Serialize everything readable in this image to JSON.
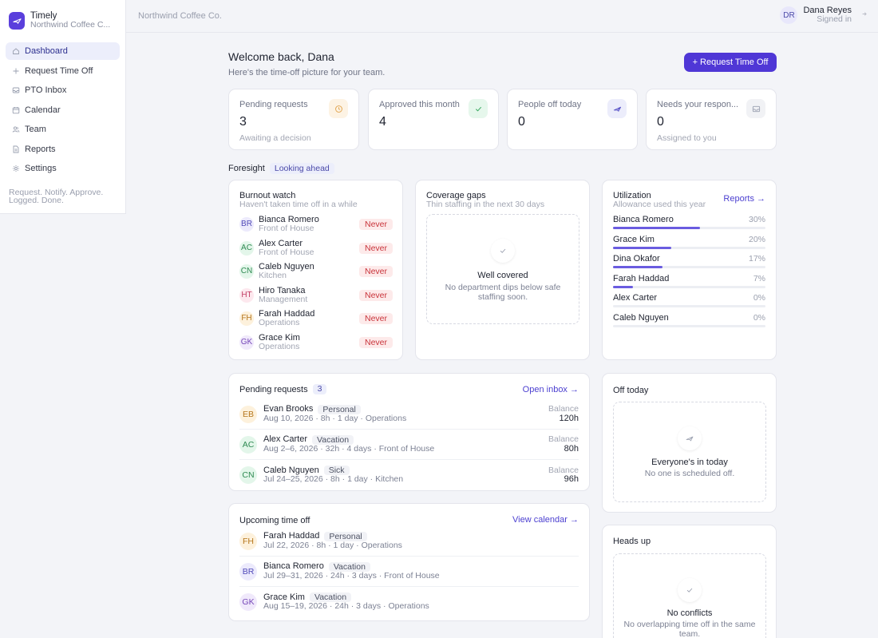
{
  "brand": {
    "name": "Timely",
    "subtitle": "Northwind Coffee C..."
  },
  "nav": [
    {
      "label": "Dashboard",
      "icon": "home-icon",
      "active": true
    },
    {
      "label": "Request Time Off",
      "icon": "plus-icon"
    },
    {
      "label": "PTO Inbox",
      "icon": "inbox-icon"
    },
    {
      "label": "Calendar",
      "icon": "calendar-icon"
    },
    {
      "label": "Team",
      "icon": "team-icon"
    },
    {
      "label": "Reports",
      "icon": "report-icon"
    },
    {
      "label": "Settings",
      "icon": "settings-icon"
    }
  ],
  "tagline": "Request. Notify. Approve. Logged. Done.",
  "topbar": {
    "company": "Northwind Coffee Co.",
    "user_initials": "DR",
    "user_name": "Dana Reyes",
    "user_status": "Signed in"
  },
  "welcome": {
    "title": "Welcome back, Dana",
    "subtitle": "Here's the time-off picture for your team.",
    "button": "+ Request Time Off"
  },
  "stats": [
    {
      "label": "Pending requests",
      "value": "3",
      "sub": "Awaiting a decision",
      "icon": "clock-icon",
      "icon_bg": "#fdf3e4",
      "icon_color": "#e0a24a"
    },
    {
      "label": "Approved this month",
      "value": "4",
      "sub": "",
      "icon": "check-icon",
      "icon_bg": "#e6f7ec",
      "icon_color": "#3aa860"
    },
    {
      "label": "People off today",
      "value": "0",
      "sub": "",
      "icon": "plane-icon",
      "icon_bg": "#ecedfb",
      "icon_color": "#5b56c8"
    },
    {
      "label": "Needs your respon...",
      "value": "0",
      "sub": "Assigned to you",
      "icon": "inbox-icon",
      "icon_bg": "#f1f2f5",
      "icon_color": "#9aa0b0"
    }
  ],
  "foresight": {
    "title": "Foresight",
    "badge": "Looking ahead"
  },
  "burnout": {
    "title": "Burnout watch",
    "subtitle": "Haven't taken time off in a while",
    "people": [
      {
        "initials": "BR",
        "name": "Bianca Romero",
        "dept": "Front of House",
        "status": "Never",
        "bg": "#eceafc",
        "fg": "#5049b8"
      },
      {
        "initials": "AC",
        "name": "Alex Carter",
        "dept": "Front of House",
        "status": "Never",
        "bg": "#e3f6ea",
        "fg": "#2f8a52"
      },
      {
        "initials": "CN",
        "name": "Caleb Nguyen",
        "dept": "Kitchen",
        "status": "Never",
        "bg": "#e3f6ea",
        "fg": "#2f8a52"
      },
      {
        "initials": "HT",
        "name": "Hiro Tanaka",
        "dept": "Management",
        "status": "Never",
        "bg": "#fde8ee",
        "fg": "#c23d64"
      },
      {
        "initials": "FH",
        "name": "Farah Haddad",
        "dept": "Operations",
        "status": "Never",
        "bg": "#fdf1dc",
        "fg": "#b5761c"
      },
      {
        "initials": "GK",
        "name": "Grace Kim",
        "dept": "Operations",
        "status": "Never",
        "bg": "#f0e9fb",
        "fg": "#7647b8"
      }
    ]
  },
  "coverage": {
    "title": "Coverage gaps",
    "subtitle": "Thin staffing in the next 30 days",
    "empty_title": "Well covered",
    "empty_text": "No department dips below safe staffing soon."
  },
  "utilization": {
    "title": "Utilization",
    "subtitle": "Allowance used this year",
    "link": "Reports →",
    "rows": [
      {
        "name": "Bianca Romero",
        "pct_label": "30%",
        "pct": 30
      },
      {
        "name": "Grace Kim",
        "pct_label": "20%",
        "pct": 20
      },
      {
        "name": "Dina Okafor",
        "pct_label": "17%",
        "pct": 17
      },
      {
        "name": "Farah Haddad",
        "pct_label": "7%",
        "pct": 7
      },
      {
        "name": "Alex Carter",
        "pct_label": "0%",
        "pct": 0
      },
      {
        "name": "Caleb Nguyen",
        "pct_label": "0%",
        "pct": 0
      }
    ]
  },
  "pending": {
    "title": "Pending requests",
    "count": "3",
    "link": "Open inbox →",
    "balance_label": "Balance",
    "rows": [
      {
        "initials": "EB",
        "name": "Evan Brooks",
        "type": "Personal",
        "meta": "Aug 10, 2026 · 8h · 1 day · Operations",
        "balance": "120h",
        "bg": "#fdf1dc",
        "fg": "#b5761c"
      },
      {
        "initials": "AC",
        "name": "Alex Carter",
        "type": "Vacation",
        "meta": "Aug 2–6, 2026 · 32h · 4 days · Front of House",
        "balance": "80h",
        "bg": "#e3f6ea",
        "fg": "#2f8a52"
      },
      {
        "initials": "CN",
        "name": "Caleb Nguyen",
        "type": "Sick",
        "meta": "Jul 24–25, 2026 · 8h · 1 day · Kitchen",
        "balance": "96h",
        "bg": "#e3f6ea",
        "fg": "#2f8a52"
      }
    ]
  },
  "upcoming": {
    "title": "Upcoming time off",
    "link": "View calendar →",
    "rows": [
      {
        "initials": "FH",
        "name": "Farah Haddad",
        "type": "Personal",
        "meta": "Jul 22, 2026 · 8h · 1 day · Operations",
        "bg": "#fdf1dc",
        "fg": "#b5761c"
      },
      {
        "initials": "BR",
        "name": "Bianca Romero",
        "type": "Vacation",
        "meta": "Jul 29–31, 2026 · 24h · 3 days · Front of House",
        "bg": "#eceafc",
        "fg": "#5049b8"
      },
      {
        "initials": "GK",
        "name": "Grace Kim",
        "type": "Vacation",
        "meta": "Aug 15–19, 2026 · 24h · 3 days · Operations",
        "bg": "#f0e9fb",
        "fg": "#7647b8"
      }
    ]
  },
  "off_today": {
    "title": "Off today",
    "empty_title": "Everyone's in today",
    "empty_text": "No one is scheduled off."
  },
  "heads_up": {
    "title": "Heads up",
    "empty_title": "No conflicts",
    "empty_text": "No overlapping time off in the same team."
  },
  "colors": {
    "accent": "#4f37d6",
    "danger": "#c9343b"
  }
}
